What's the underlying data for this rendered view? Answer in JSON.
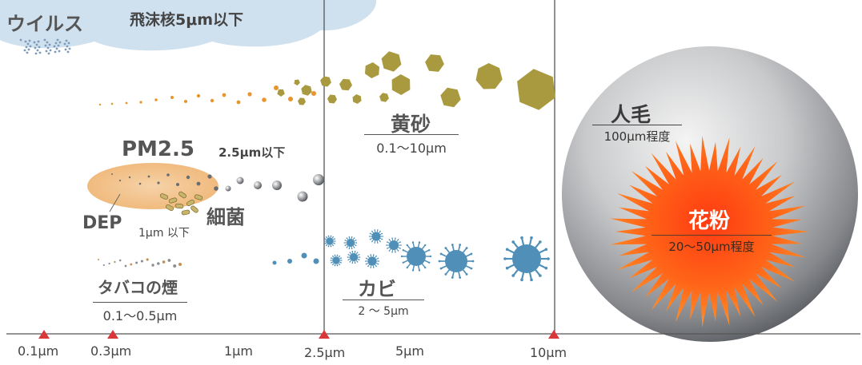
{
  "virus": {
    "title": "ウイルス",
    "note": "飛沫核5μm以下"
  },
  "kosa": {
    "title": "黄砂",
    "range": "0.1〜10μm"
  },
  "pm25": {
    "title": "PM2.5",
    "note": "2.5μm以下"
  },
  "dep": {
    "title": "DEP",
    "note": "1μm 以下"
  },
  "bacteria": {
    "title": "細菌"
  },
  "tobacco": {
    "title": "タバコの煙",
    "range": "0.1〜0.5μm"
  },
  "mold": {
    "title": "カビ",
    "range": "2 〜 5μm"
  },
  "hair": {
    "title": "人毛",
    "range": "100μm程度"
  },
  "pollen": {
    "title": "花粉",
    "range": "20〜50μm程度"
  },
  "axis": {
    "ticks": [
      {
        "label": "0.1μm",
        "marker": true
      },
      {
        "label": "0.3μm",
        "marker": true
      },
      {
        "label": "1μm",
        "marker": false
      },
      {
        "label": "2.5μm",
        "marker": true
      },
      {
        "label": "5μm",
        "marker": false
      },
      {
        "label": "10μm",
        "marker": true
      }
    ]
  },
  "colors": {
    "sand": "#a9993f",
    "sand_dark": "#8f8232",
    "orange_dot": "#e8952e",
    "mold": "#4f8fb8",
    "pollen": "#f26a1b",
    "marker": "#d9383a",
    "cloud": "#cfe0ef",
    "pm_blob": "#f4c590",
    "hair_dark": "#4a4d52"
  }
}
